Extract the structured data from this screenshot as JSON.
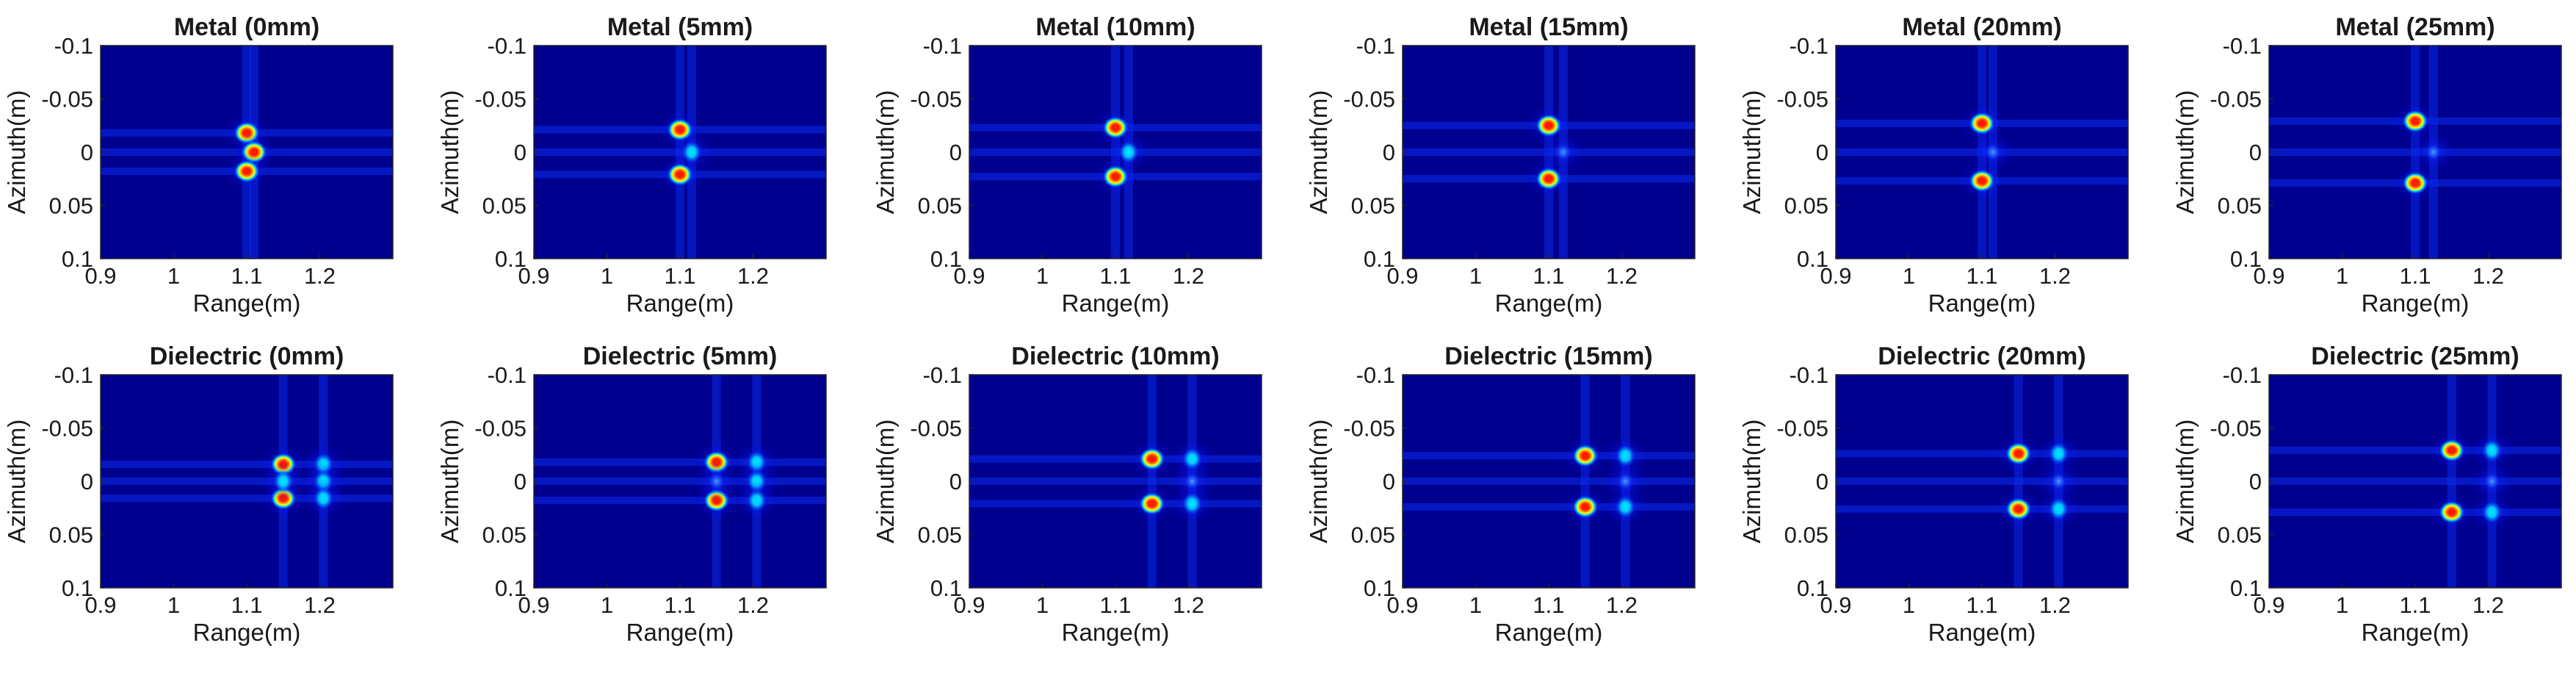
{
  "figure": {
    "colors": {
      "background": "#00008f",
      "peak": "#ff1a00",
      "ring": "#ffff00",
      "mid": "#00e5ff"
    }
  },
  "chart_data": [
    {
      "type": "heatmap",
      "colormap": "jet",
      "title": "Metal (0mm)",
      "xlabel": "Range(m)",
      "ylabel": "Azimuth(m)",
      "xlim": [
        0.9,
        1.3
      ],
      "ylim": [
        -0.1,
        0.1
      ],
      "y_reversed": true,
      "xticks": [
        "0.9",
        "1",
        "1.1",
        "1.2"
      ],
      "yticks": [
        "-0.1",
        "-0.05",
        "0",
        "0.05",
        "0.1"
      ],
      "hotspots": [
        {
          "x": 1.1,
          "y": -0.018,
          "level": 1.0
        },
        {
          "x": 1.11,
          "y": 0.0,
          "level": 1.0
        },
        {
          "x": 1.1,
          "y": 0.018,
          "level": 1.0
        }
      ]
    },
    {
      "type": "heatmap",
      "colormap": "jet",
      "title": "Metal (5mm)",
      "xlabel": "Range(m)",
      "ylabel": "Azimuth(m)",
      "xlim": [
        0.9,
        1.3
      ],
      "ylim": [
        -0.1,
        0.1
      ],
      "y_reversed": true,
      "xticks": [
        "0.9",
        "1",
        "1.1",
        "1.2"
      ],
      "yticks": [
        "-0.1",
        "-0.05",
        "0",
        "0.05",
        "0.1"
      ],
      "hotspots": [
        {
          "x": 1.1,
          "y": -0.021,
          "level": 1.0
        },
        {
          "x": 1.116,
          "y": 0.0,
          "level": 0.55
        },
        {
          "x": 1.1,
          "y": 0.021,
          "level": 1.0
        }
      ]
    },
    {
      "type": "heatmap",
      "colormap": "jet",
      "title": "Metal (10mm)",
      "xlabel": "Range(m)",
      "ylabel": "Azimuth(m)",
      "xlim": [
        0.9,
        1.3
      ],
      "ylim": [
        -0.1,
        0.1
      ],
      "y_reversed": true,
      "xticks": [
        "0.9",
        "1",
        "1.1",
        "1.2"
      ],
      "yticks": [
        "-0.1",
        "-0.05",
        "0",
        "0.05",
        "0.1"
      ],
      "hotspots": [
        {
          "x": 1.1,
          "y": -0.023,
          "level": 1.0
        },
        {
          "x": 1.118,
          "y": 0.0,
          "level": 0.5
        },
        {
          "x": 1.1,
          "y": 0.023,
          "level": 1.0
        }
      ]
    },
    {
      "type": "heatmap",
      "colormap": "jet",
      "title": "Metal (15mm)",
      "xlabel": "Range(m)",
      "ylabel": "Azimuth(m)",
      "xlim": [
        0.9,
        1.3
      ],
      "ylim": [
        -0.1,
        0.1
      ],
      "y_reversed": true,
      "xticks": [
        "0.9",
        "1",
        "1.1",
        "1.2"
      ],
      "yticks": [
        "-0.1",
        "-0.05",
        "0",
        "0.05",
        "0.1"
      ],
      "hotspots": [
        {
          "x": 1.1,
          "y": -0.025,
          "level": 1.0
        },
        {
          "x": 1.12,
          "y": 0.0,
          "level": 0.35
        },
        {
          "x": 1.1,
          "y": 0.025,
          "level": 1.0
        }
      ]
    },
    {
      "type": "heatmap",
      "colormap": "jet",
      "title": "Metal (20mm)",
      "xlabel": "Range(m)",
      "ylabel": "Azimuth(m)",
      "xlim": [
        0.9,
        1.3
      ],
      "ylim": [
        -0.1,
        0.1
      ],
      "y_reversed": true,
      "xticks": [
        "0.9",
        "1",
        "1.1",
        "1.2"
      ],
      "yticks": [
        "-0.1",
        "-0.05",
        "0",
        "0.05",
        "0.1"
      ],
      "hotspots": [
        {
          "x": 1.1,
          "y": -0.027,
          "level": 1.0
        },
        {
          "x": 1.115,
          "y": 0.0,
          "level": 0.3
        },
        {
          "x": 1.1,
          "y": 0.027,
          "level": 1.0
        }
      ]
    },
    {
      "type": "heatmap",
      "colormap": "jet",
      "title": "Metal (25mm)",
      "xlabel": "Range(m)",
      "ylabel": "Azimuth(m)",
      "xlim": [
        0.9,
        1.3
      ],
      "ylim": [
        -0.1,
        0.1
      ],
      "y_reversed": true,
      "xticks": [
        "0.9",
        "1",
        "1.1",
        "1.2"
      ],
      "yticks": [
        "-0.1",
        "-0.05",
        "0",
        "0.05",
        "0.1"
      ],
      "hotspots": [
        {
          "x": 1.1,
          "y": -0.029,
          "level": 1.0
        },
        {
          "x": 1.125,
          "y": 0.0,
          "level": 0.3
        },
        {
          "x": 1.1,
          "y": 0.029,
          "level": 1.0
        }
      ]
    },
    {
      "type": "heatmap",
      "colormap": "jet",
      "title": "Dielectric (0mm)",
      "xlabel": "Range(m)",
      "ylabel": "Azimuth(m)",
      "xlim": [
        0.9,
        1.3
      ],
      "ylim": [
        -0.1,
        0.1
      ],
      "y_reversed": true,
      "xticks": [
        "0.9",
        "1",
        "1.1",
        "1.2"
      ],
      "yticks": [
        "-0.1",
        "-0.05",
        "0",
        "0.05",
        "0.1"
      ],
      "hotspots": [
        {
          "x": 1.15,
          "y": -0.016,
          "level": 1.0
        },
        {
          "x": 1.15,
          "y": 0.016,
          "level": 1.0
        },
        {
          "x": 1.15,
          "y": 0.0,
          "level": 0.55
        },
        {
          "x": 1.205,
          "y": -0.016,
          "level": 0.6
        },
        {
          "x": 1.205,
          "y": 0.0,
          "level": 0.65
        },
        {
          "x": 1.205,
          "y": 0.016,
          "level": 0.6
        }
      ]
    },
    {
      "type": "heatmap",
      "colormap": "jet",
      "title": "Dielectric (5mm)",
      "xlabel": "Range(m)",
      "ylabel": "Azimuth(m)",
      "xlim": [
        0.9,
        1.3
      ],
      "ylim": [
        -0.1,
        0.1
      ],
      "y_reversed": true,
      "xticks": [
        "0.9",
        "1",
        "1.1",
        "1.2"
      ],
      "yticks": [
        "-0.1",
        "-0.05",
        "0",
        "0.05",
        "0.1"
      ],
      "hotspots": [
        {
          "x": 1.15,
          "y": -0.018,
          "level": 1.0
        },
        {
          "x": 1.15,
          "y": 0.018,
          "level": 1.0
        },
        {
          "x": 1.15,
          "y": 0.0,
          "level": 0.35
        },
        {
          "x": 1.205,
          "y": -0.018,
          "level": 0.8
        },
        {
          "x": 1.205,
          "y": 0.0,
          "level": 0.75
        },
        {
          "x": 1.205,
          "y": 0.018,
          "level": 0.8
        }
      ]
    },
    {
      "type": "heatmap",
      "colormap": "jet",
      "title": "Dielectric (10mm)",
      "xlabel": "Range(m)",
      "ylabel": "Azimuth(m)",
      "xlim": [
        0.9,
        1.3
      ],
      "ylim": [
        -0.1,
        0.1
      ],
      "y_reversed": true,
      "xticks": [
        "0.9",
        "1",
        "1.1",
        "1.2"
      ],
      "yticks": [
        "-0.1",
        "-0.05",
        "0",
        "0.05",
        "0.1"
      ],
      "hotspots": [
        {
          "x": 1.15,
          "y": -0.021,
          "level": 1.0
        },
        {
          "x": 1.15,
          "y": 0.021,
          "level": 1.0
        },
        {
          "x": 1.205,
          "y": -0.021,
          "level": 0.65
        },
        {
          "x": 1.205,
          "y": 0.0,
          "level": 0.45
        },
        {
          "x": 1.205,
          "y": 0.021,
          "level": 0.65
        }
      ]
    },
    {
      "type": "heatmap",
      "colormap": "jet",
      "title": "Dielectric (15mm)",
      "xlabel": "Range(m)",
      "ylabel": "Azimuth(m)",
      "xlim": [
        0.9,
        1.3
      ],
      "ylim": [
        -0.1,
        0.1
      ],
      "y_reversed": true,
      "xticks": [
        "0.9",
        "1",
        "1.1",
        "1.2"
      ],
      "yticks": [
        "-0.1",
        "-0.05",
        "0",
        "0.05",
        "0.1"
      ],
      "hotspots": [
        {
          "x": 1.15,
          "y": -0.024,
          "level": 0.9
        },
        {
          "x": 1.15,
          "y": 0.024,
          "level": 1.0
        },
        {
          "x": 1.205,
          "y": -0.024,
          "level": 0.6
        },
        {
          "x": 1.205,
          "y": 0.0,
          "level": 0.4
        },
        {
          "x": 1.205,
          "y": 0.024,
          "level": 0.6
        }
      ]
    },
    {
      "type": "heatmap",
      "colormap": "jet",
      "title": "Dielectric (20mm)",
      "xlabel": "Range(m)",
      "ylabel": "Azimuth(m)",
      "xlim": [
        0.9,
        1.3
      ],
      "ylim": [
        -0.1,
        0.1
      ],
      "y_reversed": true,
      "xticks": [
        "0.9",
        "1",
        "1.1",
        "1.2"
      ],
      "yticks": [
        "-0.1",
        "-0.05",
        "0",
        "0.05",
        "0.1"
      ],
      "hotspots": [
        {
          "x": 1.15,
          "y": -0.026,
          "level": 1.0
        },
        {
          "x": 1.15,
          "y": 0.026,
          "level": 1.0
        },
        {
          "x": 1.205,
          "y": -0.026,
          "level": 0.65
        },
        {
          "x": 1.205,
          "y": 0.0,
          "level": 0.35
        },
        {
          "x": 1.205,
          "y": 0.026,
          "level": 0.65
        }
      ]
    },
    {
      "type": "heatmap",
      "colormap": "jet",
      "title": "Dielectric (25mm)",
      "xlabel": "Range(m)",
      "ylabel": "Azimuth(m)",
      "xlim": [
        0.9,
        1.3
      ],
      "ylim": [
        -0.1,
        0.1
      ],
      "y_reversed": true,
      "xticks": [
        "0.9",
        "1",
        "1.1",
        "1.2"
      ],
      "yticks": [
        "-0.1",
        "-0.05",
        "0",
        "0.05",
        "0.1"
      ],
      "hotspots": [
        {
          "x": 1.15,
          "y": -0.029,
          "level": 1.0
        },
        {
          "x": 1.15,
          "y": 0.029,
          "level": 1.0
        },
        {
          "x": 1.205,
          "y": -0.029,
          "level": 0.6
        },
        {
          "x": 1.205,
          "y": 0.0,
          "level": 0.35
        },
        {
          "x": 1.205,
          "y": 0.029,
          "level": 0.6
        }
      ]
    }
  ]
}
